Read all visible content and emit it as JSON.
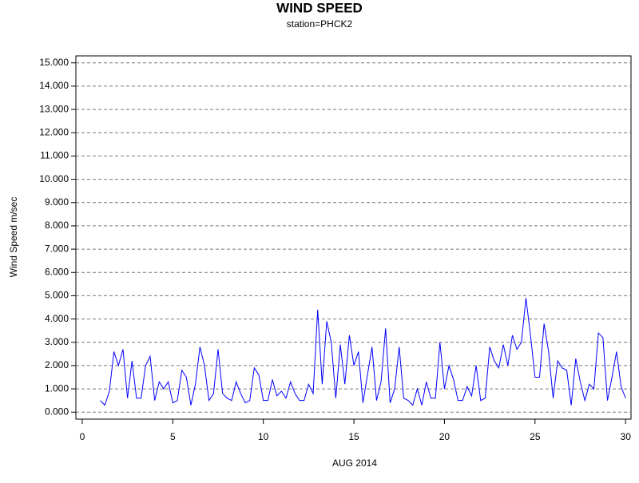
{
  "chart_data": {
    "type": "line",
    "title": "WIND SPEED",
    "subtitle": "station=PHCK2",
    "x_label": "AUG 2014",
    "y_label": "Wind Speed m/sec",
    "color": "#0000ff",
    "grid": true,
    "xlim": [
      -0.35,
      30.3
    ],
    "ylim": [
      -0.3,
      15.3
    ],
    "xticks": [
      0,
      5,
      10,
      15,
      20,
      25,
      30
    ],
    "yticks": [
      {
        "value": 0,
        "label": "0.000"
      },
      {
        "value": 1,
        "label": "1.000"
      },
      {
        "value": 2,
        "label": "2.000"
      },
      {
        "value": 3,
        "label": "3.000"
      },
      {
        "value": 4,
        "label": "4.000"
      },
      {
        "value": 5,
        "label": "5.000"
      },
      {
        "value": 6,
        "label": "6.000"
      },
      {
        "value": 7,
        "label": "7.000"
      },
      {
        "value": 8,
        "label": "8.000"
      },
      {
        "value": 9,
        "label": "9.000"
      },
      {
        "value": 10,
        "label": "10.000"
      },
      {
        "value": 11,
        "label": "11.000"
      },
      {
        "value": 12,
        "label": "12.000"
      },
      {
        "value": 13,
        "label": "13.000"
      },
      {
        "value": 14,
        "label": "14.000"
      },
      {
        "value": 15,
        "label": "15.000"
      }
    ],
    "x": [
      1,
      1.25,
      1.5,
      1.75,
      2,
      2.25,
      2.5,
      2.75,
      3,
      3.25,
      3.5,
      3.75,
      4,
      4.25,
      4.5,
      4.75,
      5,
      5.25,
      5.5,
      5.75,
      6,
      6.25,
      6.5,
      6.75,
      7,
      7.25,
      7.5,
      7.75,
      8,
      8.25,
      8.5,
      8.75,
      9,
      9.25,
      9.5,
      9.75,
      10,
      10.25,
      10.5,
      10.75,
      11,
      11.25,
      11.5,
      11.75,
      12,
      12.25,
      12.5,
      12.75,
      13,
      13.25,
      13.5,
      13.75,
      14,
      14.25,
      14.5,
      14.75,
      15,
      15.25,
      15.5,
      15.75,
      16,
      16.25,
      16.5,
      16.75,
      17,
      17.25,
      17.5,
      17.75,
      18,
      18.25,
      18.5,
      18.75,
      19,
      19.25,
      19.5,
      19.75,
      20,
      20.25,
      20.5,
      20.75,
      21,
      21.25,
      21.5,
      21.75,
      22,
      22.25,
      22.5,
      22.75,
      23,
      23.25,
      23.5,
      23.75,
      24,
      24.25,
      24.5,
      24.75,
      25,
      25.25,
      25.5,
      25.75,
      26,
      26.25,
      26.5,
      26.75,
      27,
      27.25,
      27.5,
      27.75,
      28,
      28.25,
      28.5,
      28.75,
      29,
      29.25,
      29.5,
      29.75,
      30
    ],
    "values": [
      0.5,
      0.3,
      0.9,
      2.6,
      2.0,
      2.7,
      0.6,
      2.2,
      0.6,
      0.6,
      2.0,
      2.4,
      0.5,
      1.3,
      1.0,
      1.3,
      0.4,
      0.5,
      1.8,
      1.5,
      0.3,
      1.2,
      2.8,
      2.0,
      0.5,
      0.8,
      2.7,
      0.8,
      0.6,
      0.5,
      1.3,
      0.8,
      0.4,
      0.5,
      1.9,
      1.6,
      0.5,
      0.5,
      1.4,
      0.7,
      0.9,
      0.6,
      1.3,
      0.8,
      0.5,
      0.5,
      1.2,
      0.8,
      4.4,
      1.2,
      3.9,
      3.0,
      0.6,
      2.9,
      1.2,
      3.3,
      2.0,
      2.6,
      0.4,
      1.6,
      2.8,
      0.5,
      1.3,
      3.6,
      0.4,
      1.0,
      2.8,
      0.6,
      0.5,
      0.3,
      1.0,
      0.3,
      1.3,
      0.6,
      0.6,
      3.0,
      1.0,
      2.0,
      1.4,
      0.5,
      0.5,
      1.1,
      0.7,
      2.0,
      0.5,
      0.6,
      2.8,
      2.2,
      1.9,
      2.9,
      2.0,
      3.3,
      2.7,
      3.0,
      4.9,
      3.3,
      1.5,
      1.5,
      3.8,
      2.6,
      0.6,
      2.2,
      1.9,
      1.8,
      0.3,
      2.3,
      1.3,
      0.5,
      1.2,
      1.0,
      3.4,
      3.2,
      0.5,
      1.5,
      2.6,
      1.1,
      0.6
    ]
  }
}
